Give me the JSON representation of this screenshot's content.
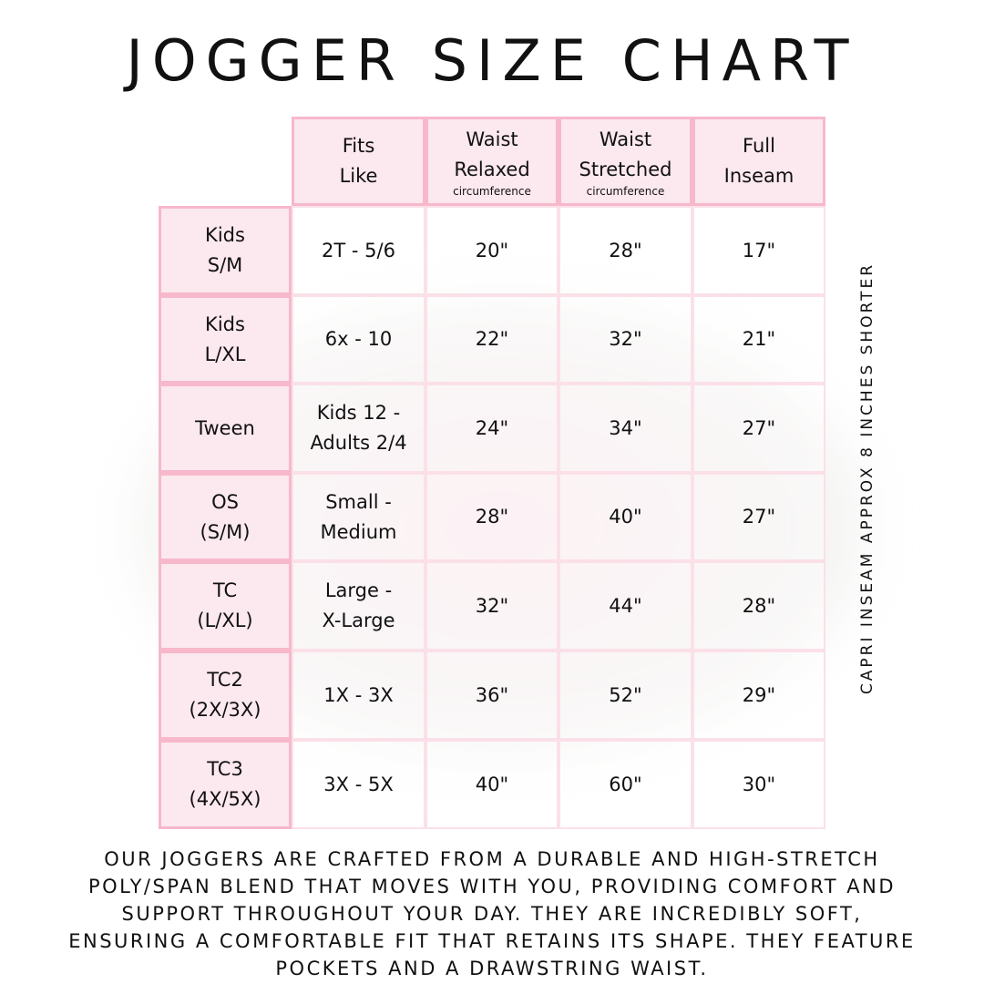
{
  "title": "JOGGER SIZE CHART",
  "colors": {
    "header_fill": "#fce8ef",
    "header_border": "#f7b8cb",
    "body_border": "#fbe0e8"
  },
  "columns": [
    {
      "lines": [
        "Fits",
        "Like"
      ],
      "sub": ""
    },
    {
      "lines": [
        "Waist",
        "Relaxed"
      ],
      "sub": "circumference"
    },
    {
      "lines": [
        "Waist",
        "Stretched"
      ],
      "sub": "circumference"
    },
    {
      "lines": [
        "Full",
        "Inseam"
      ],
      "sub": ""
    }
  ],
  "rows": [
    {
      "size": [
        "Kids",
        "S/M"
      ],
      "fits": [
        "2T - 5/6"
      ],
      "relaxed": "20\"",
      "stretched": "28\"",
      "inseam": "17\""
    },
    {
      "size": [
        "Kids",
        "L/XL"
      ],
      "fits": [
        "6x - 10"
      ],
      "relaxed": "22\"",
      "stretched": "32\"",
      "inseam": "21\""
    },
    {
      "size": [
        "Tween"
      ],
      "fits": [
        "Kids 12 -",
        "Adults 2/4"
      ],
      "relaxed": "24\"",
      "stretched": "34\"",
      "inseam": "27\""
    },
    {
      "size": [
        "OS",
        "(S/M)"
      ],
      "fits": [
        "Small -",
        "Medium"
      ],
      "relaxed": "28\"",
      "stretched": "40\"",
      "inseam": "27\""
    },
    {
      "size": [
        "TC",
        "(L/XL)"
      ],
      "fits": [
        "Large -",
        "X-Large"
      ],
      "relaxed": "32\"",
      "stretched": "44\"",
      "inseam": "28\""
    },
    {
      "size": [
        "TC2",
        "(2X/3X)"
      ],
      "fits": [
        "1X - 3X"
      ],
      "relaxed": "36\"",
      "stretched": "52\"",
      "inseam": "29\""
    },
    {
      "size": [
        "TC3",
        "(4X/5X)"
      ],
      "fits": [
        "3X - 5X"
      ],
      "relaxed": "40\"",
      "stretched": "60\"",
      "inseam": "30\""
    }
  ],
  "side_note": "CAPRI INSEAM APPROX 8 INCHES SHORTER",
  "footer": [
    "Our joggers are crafted from a durable and high-stretch",
    "poly/span blend that moves with you, providing comfort and",
    "support throughout your day. They are incredibly soft,",
    "ensuring a comfortable fit that retains its shape. They feature",
    "pockets and a drawstring waist."
  ]
}
